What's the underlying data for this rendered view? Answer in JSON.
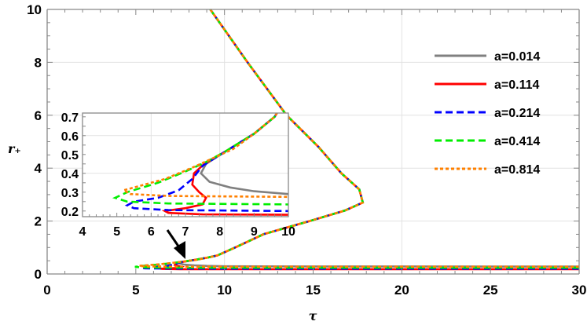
{
  "chart_data": {
    "type": "line",
    "xlabel": "τ",
    "ylabel": "r₊",
    "xlim": [
      0,
      30
    ],
    "ylim": [
      0,
      10
    ],
    "xticks": [
      "0",
      "5",
      "10",
      "15",
      "20",
      "25",
      "30"
    ],
    "yticks": [
      "0",
      "2",
      "4",
      "6",
      "8",
      "10"
    ],
    "grid": true,
    "legend_position": "right",
    "series": [
      {
        "name": "a=0.014",
        "color": "#808080",
        "dash": "solid",
        "points": [
          [
            30,
            0.28
          ],
          [
            15,
            0.285
          ],
          [
            10,
            0.29
          ],
          [
            9,
            0.305
          ],
          [
            8.3,
            0.325
          ],
          [
            7.7,
            0.355
          ],
          [
            7.45,
            0.4
          ],
          [
            7.6,
            0.45
          ],
          [
            8.2,
            0.52
          ],
          [
            9,
            0.61
          ],
          [
            9.6,
            0.7
          ],
          [
            10.6,
            1.0
          ],
          [
            12.2,
            1.5
          ],
          [
            14.8,
            2.0
          ],
          [
            16.8,
            2.4
          ],
          [
            17.8,
            2.7
          ],
          [
            17.6,
            3.2
          ],
          [
            16.6,
            3.8
          ],
          [
            15.3,
            4.8
          ],
          [
            13.5,
            6
          ],
          [
            11.3,
            8
          ],
          [
            9.2,
            10
          ]
        ]
      },
      {
        "name": "a=0.114",
        "color": "#ff0000",
        "dash": "solid",
        "points": [
          [
            30,
            0.18
          ],
          [
            10,
            0.18
          ],
          [
            7.5,
            0.182
          ],
          [
            6.5,
            0.19
          ],
          [
            6.4,
            0.2
          ],
          [
            7,
            0.215
          ],
          [
            7.5,
            0.235
          ],
          [
            7.6,
            0.27
          ],
          [
            7.4,
            0.3
          ],
          [
            7.2,
            0.34
          ],
          [
            7.25,
            0.4
          ],
          [
            7.55,
            0.45
          ],
          [
            8.2,
            0.52
          ],
          [
            9,
            0.61
          ],
          [
            9.6,
            0.7
          ],
          [
            10.6,
            1.0
          ],
          [
            12.2,
            1.5
          ],
          [
            14.8,
            2.0
          ],
          [
            16.8,
            2.4
          ],
          [
            17.8,
            2.7
          ],
          [
            17.6,
            3.2
          ],
          [
            16.6,
            3.8
          ],
          [
            15.3,
            4.8
          ],
          [
            13.5,
            6
          ],
          [
            11.3,
            8
          ],
          [
            9.2,
            10
          ]
        ]
      },
      {
        "name": "a=0.214",
        "color": "#0000ff",
        "dash": "dashed",
        "points": [
          [
            30,
            0.2
          ],
          [
            10,
            0.2
          ],
          [
            6.5,
            0.205
          ],
          [
            5.5,
            0.215
          ],
          [
            5.3,
            0.23
          ],
          [
            5.5,
            0.25
          ],
          [
            6.2,
            0.27
          ],
          [
            6.8,
            0.31
          ],
          [
            7.2,
            0.37
          ],
          [
            7.5,
            0.44
          ],
          [
            8.2,
            0.52
          ],
          [
            9,
            0.61
          ],
          [
            9.6,
            0.7
          ],
          [
            10.6,
            1.0
          ],
          [
            12.2,
            1.5
          ],
          [
            14.8,
            2.0
          ],
          [
            16.8,
            2.4
          ],
          [
            17.8,
            2.7
          ],
          [
            17.6,
            3.2
          ],
          [
            16.6,
            3.8
          ],
          [
            15.3,
            4.8
          ],
          [
            13.5,
            6
          ],
          [
            11.3,
            8
          ],
          [
            9.2,
            10
          ]
        ]
      },
      {
        "name": "a=0.414",
        "color": "#00ee00",
        "dash": "dashed",
        "points": [
          [
            30,
            0.235
          ],
          [
            10,
            0.235
          ],
          [
            6.5,
            0.24
          ],
          [
            5.3,
            0.25
          ],
          [
            4.95,
            0.27
          ],
          [
            5.3,
            0.3
          ],
          [
            6.2,
            0.35
          ],
          [
            7,
            0.41
          ],
          [
            7.6,
            0.46
          ],
          [
            8.2,
            0.52
          ],
          [
            9,
            0.61
          ],
          [
            9.6,
            0.7
          ],
          [
            10.6,
            1.0
          ],
          [
            12.2,
            1.5
          ],
          [
            14.8,
            2.0
          ],
          [
            16.8,
            2.4
          ],
          [
            17.8,
            2.7
          ],
          [
            17.6,
            3.2
          ],
          [
            16.6,
            3.8
          ],
          [
            15.3,
            4.8
          ],
          [
            13.5,
            6
          ],
          [
            11.3,
            8
          ],
          [
            9.2,
            10
          ]
        ]
      },
      {
        "name": "a=0.814",
        "color": "#ff8000",
        "dash": "dotted",
        "points": [
          [
            30,
            0.275
          ],
          [
            10,
            0.275
          ],
          [
            6.5,
            0.28
          ],
          [
            5.4,
            0.29
          ],
          [
            5.2,
            0.31
          ],
          [
            5.6,
            0.33
          ],
          [
            6.4,
            0.37
          ],
          [
            7.2,
            0.43
          ],
          [
            7.8,
            0.48
          ],
          [
            8.4,
            0.53
          ],
          [
            9,
            0.61
          ],
          [
            9.6,
            0.7
          ],
          [
            10.6,
            1.0
          ],
          [
            12.2,
            1.5
          ],
          [
            14.8,
            2.0
          ],
          [
            16.8,
            2.4
          ],
          [
            17.8,
            2.7
          ],
          [
            17.6,
            3.2
          ],
          [
            16.6,
            3.8
          ],
          [
            15.3,
            4.8
          ],
          [
            13.5,
            6
          ],
          [
            11.3,
            8
          ],
          [
            9.2,
            10
          ]
        ]
      }
    ],
    "inset": {
      "xlim": [
        4,
        10
      ],
      "ylim": [
        0.17,
        0.72
      ],
      "xticks": [
        "4",
        "5",
        "6",
        "7",
        "8",
        "9",
        "10"
      ],
      "yticks": [
        "0.2",
        "0.3",
        "0.4",
        "0.5",
        "0.6",
        "0.7"
      ]
    },
    "annotation": "arrow pointing to small-τ region of main plot"
  }
}
